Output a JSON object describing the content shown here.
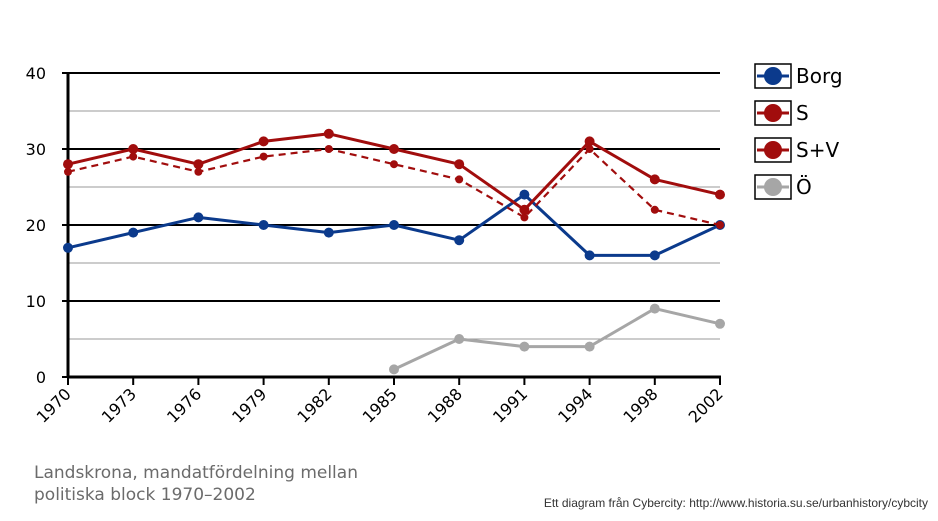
{
  "chart_data": {
    "type": "line",
    "categories": [
      "1970",
      "1973",
      "1976",
      "1979",
      "1982",
      "1985",
      "1988",
      "1991",
      "1994",
      "1998",
      "2002"
    ],
    "ylim": [
      0,
      40
    ],
    "y_ticks": [
      "0",
      "10",
      "20",
      "30",
      "40"
    ],
    "grid": true,
    "legend_position": "right",
    "series": [
      {
        "name": "Borg",
        "color": "#0b3a8c",
        "dashed": false,
        "values": [
          17,
          19,
          21,
          20,
          19,
          20,
          18,
          24,
          16,
          16,
          20
        ]
      },
      {
        "name": "S",
        "color": "#a10d0d",
        "dashed": true,
        "values": [
          27,
          29,
          27,
          29,
          30,
          28,
          26,
          21,
          30,
          22,
          20
        ]
      },
      {
        "name": "S+V",
        "color": "#a10d0d",
        "dashed": false,
        "values": [
          28,
          30,
          28,
          31,
          32,
          30,
          28,
          22,
          31,
          26,
          24
        ]
      },
      {
        "name": "Ö",
        "color": "#a6a6a6",
        "dashed": false,
        "values": [
          null,
          null,
          null,
          null,
          null,
          1,
          5,
          4,
          4,
          9,
          7
        ]
      }
    ]
  },
  "caption": {
    "line1": "Landskrona, mandatfördelning mellan",
    "line2": "politiska block 1970–2002"
  },
  "credit": "Ett diagram från Cybercity: http://www.historia.su.se/urbanhistory/cybcity"
}
